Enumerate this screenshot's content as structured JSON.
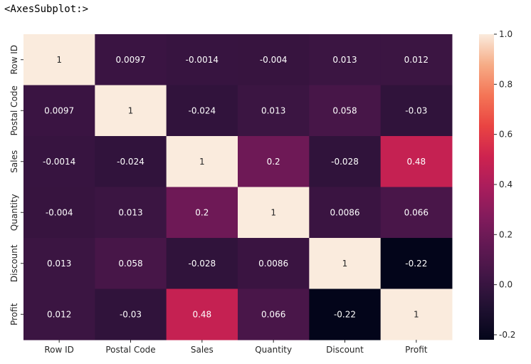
{
  "output_label": "<AxesSubplot:>",
  "chart_data": {
    "type": "heatmap",
    "x_labels": [
      "Row ID",
      "Postal Code",
      "Sales",
      "Quantity",
      "Discount",
      "Profit"
    ],
    "y_labels": [
      "Row ID",
      "Postal Code",
      "Sales",
      "Quantity",
      "Discount",
      "Profit"
    ],
    "values": [
      [
        1,
        0.0097,
        -0.0014,
        -0.004,
        0.013,
        0.012
      ],
      [
        0.0097,
        1,
        -0.024,
        0.013,
        0.058,
        -0.03
      ],
      [
        -0.0014,
        -0.024,
        1,
        0.2,
        -0.028,
        0.48
      ],
      [
        -0.004,
        0.013,
        0.2,
        1,
        0.0086,
        0.066
      ],
      [
        0.013,
        0.058,
        -0.028,
        0.0086,
        1,
        -0.22
      ],
      [
        0.012,
        -0.03,
        0.48,
        0.066,
        -0.22,
        1
      ]
    ],
    "value_labels": [
      [
        "1",
        "0.0097",
        "-0.0014",
        "-0.004",
        "0.013",
        "0.012"
      ],
      [
        "0.0097",
        "1",
        "-0.024",
        "0.013",
        "0.058",
        "-0.03"
      ],
      [
        "-0.0014",
        "-0.024",
        "1",
        "0.2",
        "-0.028",
        "0.48"
      ],
      [
        "-0.004",
        "0.013",
        "0.2",
        "1",
        "0.0086",
        "0.066"
      ],
      [
        "0.013",
        "0.058",
        "-0.028",
        "0.0086",
        "1",
        "-0.22"
      ],
      [
        "0.012",
        "-0.03",
        "0.48",
        "0.066",
        "-0.22",
        "1"
      ]
    ],
    "colormap": "rocket",
    "vmin": -0.22,
    "vmax": 1.0,
    "colorbar": {
      "ticks": [
        1.0,
        0.8,
        0.6,
        0.4,
        0.2,
        0.0,
        -0.2
      ],
      "tick_labels": [
        "1.0",
        "0.8",
        "0.6",
        "0.4",
        "0.2",
        "0.0",
        "-0.2"
      ]
    }
  }
}
